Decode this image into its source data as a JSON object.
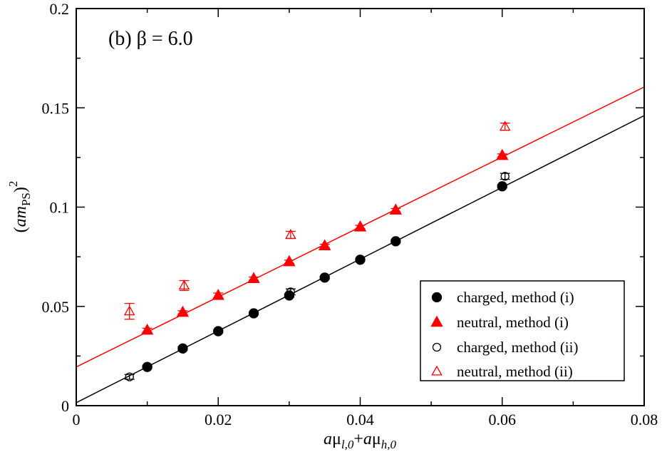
{
  "chart_data": {
    "type": "scatter",
    "annotation": "(b) β = 6.0",
    "xlabel": {
      "a1": "a",
      "mu1": "μ",
      "sub1": "l,0",
      "plus": "+",
      "a2": "a",
      "mu2": "μ",
      "sub2": "h,0"
    },
    "ylabel": {
      "open": "(",
      "am": "am",
      "sub": "PS",
      "close": ")",
      "sup": "2"
    },
    "xlim": [
      0,
      0.08
    ],
    "ylim": [
      0,
      0.2
    ],
    "xticks": [
      0,
      0.02,
      0.04,
      0.06,
      0.08
    ],
    "xtick_labels": [
      "0",
      "0.02",
      "0.04",
      "0.06",
      "0.08"
    ],
    "yticks": [
      0,
      0.05,
      0.1,
      0.15,
      0.2
    ],
    "ytick_labels": [
      "0",
      "0.05",
      "0.1",
      "0.15",
      "0.2"
    ],
    "legend_position": "bottom-right",
    "series": [
      {
        "name": "charged, method (i)",
        "marker": "filled-circle",
        "color": "#000000",
        "points": [
          {
            "x": 0.01,
            "y": 0.0195,
            "err": 0.0006
          },
          {
            "x": 0.015,
            "y": 0.0288,
            "err": 0.0008
          },
          {
            "x": 0.02,
            "y": 0.0375,
            "err": 0.0006
          },
          {
            "x": 0.025,
            "y": 0.0465,
            "err": 0.0006
          },
          {
            "x": 0.03,
            "y": 0.0555,
            "err": 0.0008
          },
          {
            "x": 0.035,
            "y": 0.0645,
            "err": 0.0006
          },
          {
            "x": 0.04,
            "y": 0.0735,
            "err": 0.0006
          },
          {
            "x": 0.045,
            "y": 0.0828,
            "err": 0.0006
          },
          {
            "x": 0.06,
            "y": 0.1105,
            "err": 0.0008
          }
        ]
      },
      {
        "name": "neutral, method (i)",
        "marker": "filled-triangle",
        "color": "#ff0000",
        "points": [
          {
            "x": 0.01,
            "y": 0.038,
            "err": 0.001
          },
          {
            "x": 0.015,
            "y": 0.047,
            "err": 0.0008
          },
          {
            "x": 0.02,
            "y": 0.0555,
            "err": 0.0012
          },
          {
            "x": 0.025,
            "y": 0.064,
            "err": 0.0008
          },
          {
            "x": 0.03,
            "y": 0.0725,
            "err": 0.0008
          },
          {
            "x": 0.035,
            "y": 0.0805,
            "err": 0.0008
          },
          {
            "x": 0.04,
            "y": 0.09,
            "err": 0.0008
          },
          {
            "x": 0.045,
            "y": 0.0985,
            "err": 0.0008
          },
          {
            "x": 0.06,
            "y": 0.126,
            "err": 0.0008
          }
        ]
      },
      {
        "name": "charged, method (ii)",
        "marker": "open-circle",
        "color": "#000000",
        "points": [
          {
            "x": 0.0075,
            "y": 0.0145,
            "err": 0.0012
          },
          {
            "x": 0.0302,
            "y": 0.0573,
            "err": 0.0015
          },
          {
            "x": 0.0604,
            "y": 0.1155,
            "err": 0.0015
          }
        ]
      },
      {
        "name": "neutral, method (ii)",
        "marker": "open-triangle",
        "color": "#ff0000",
        "points": [
          {
            "x": 0.0075,
            "y": 0.0475,
            "err": 0.004
          },
          {
            "x": 0.0152,
            "y": 0.0605,
            "err": 0.0025
          },
          {
            "x": 0.0302,
            "y": 0.086,
            "err": 0.0018
          },
          {
            "x": 0.0604,
            "y": 0.1405,
            "err": 0.0018
          }
        ]
      }
    ],
    "fits": [
      {
        "name": "charged-fit",
        "color": "#000000",
        "intercept": 0.0015,
        "slope": 1.8075
      },
      {
        "name": "neutral-fit",
        "color": "#ff0000",
        "intercept": 0.0195,
        "slope": 1.7625
      }
    ]
  }
}
